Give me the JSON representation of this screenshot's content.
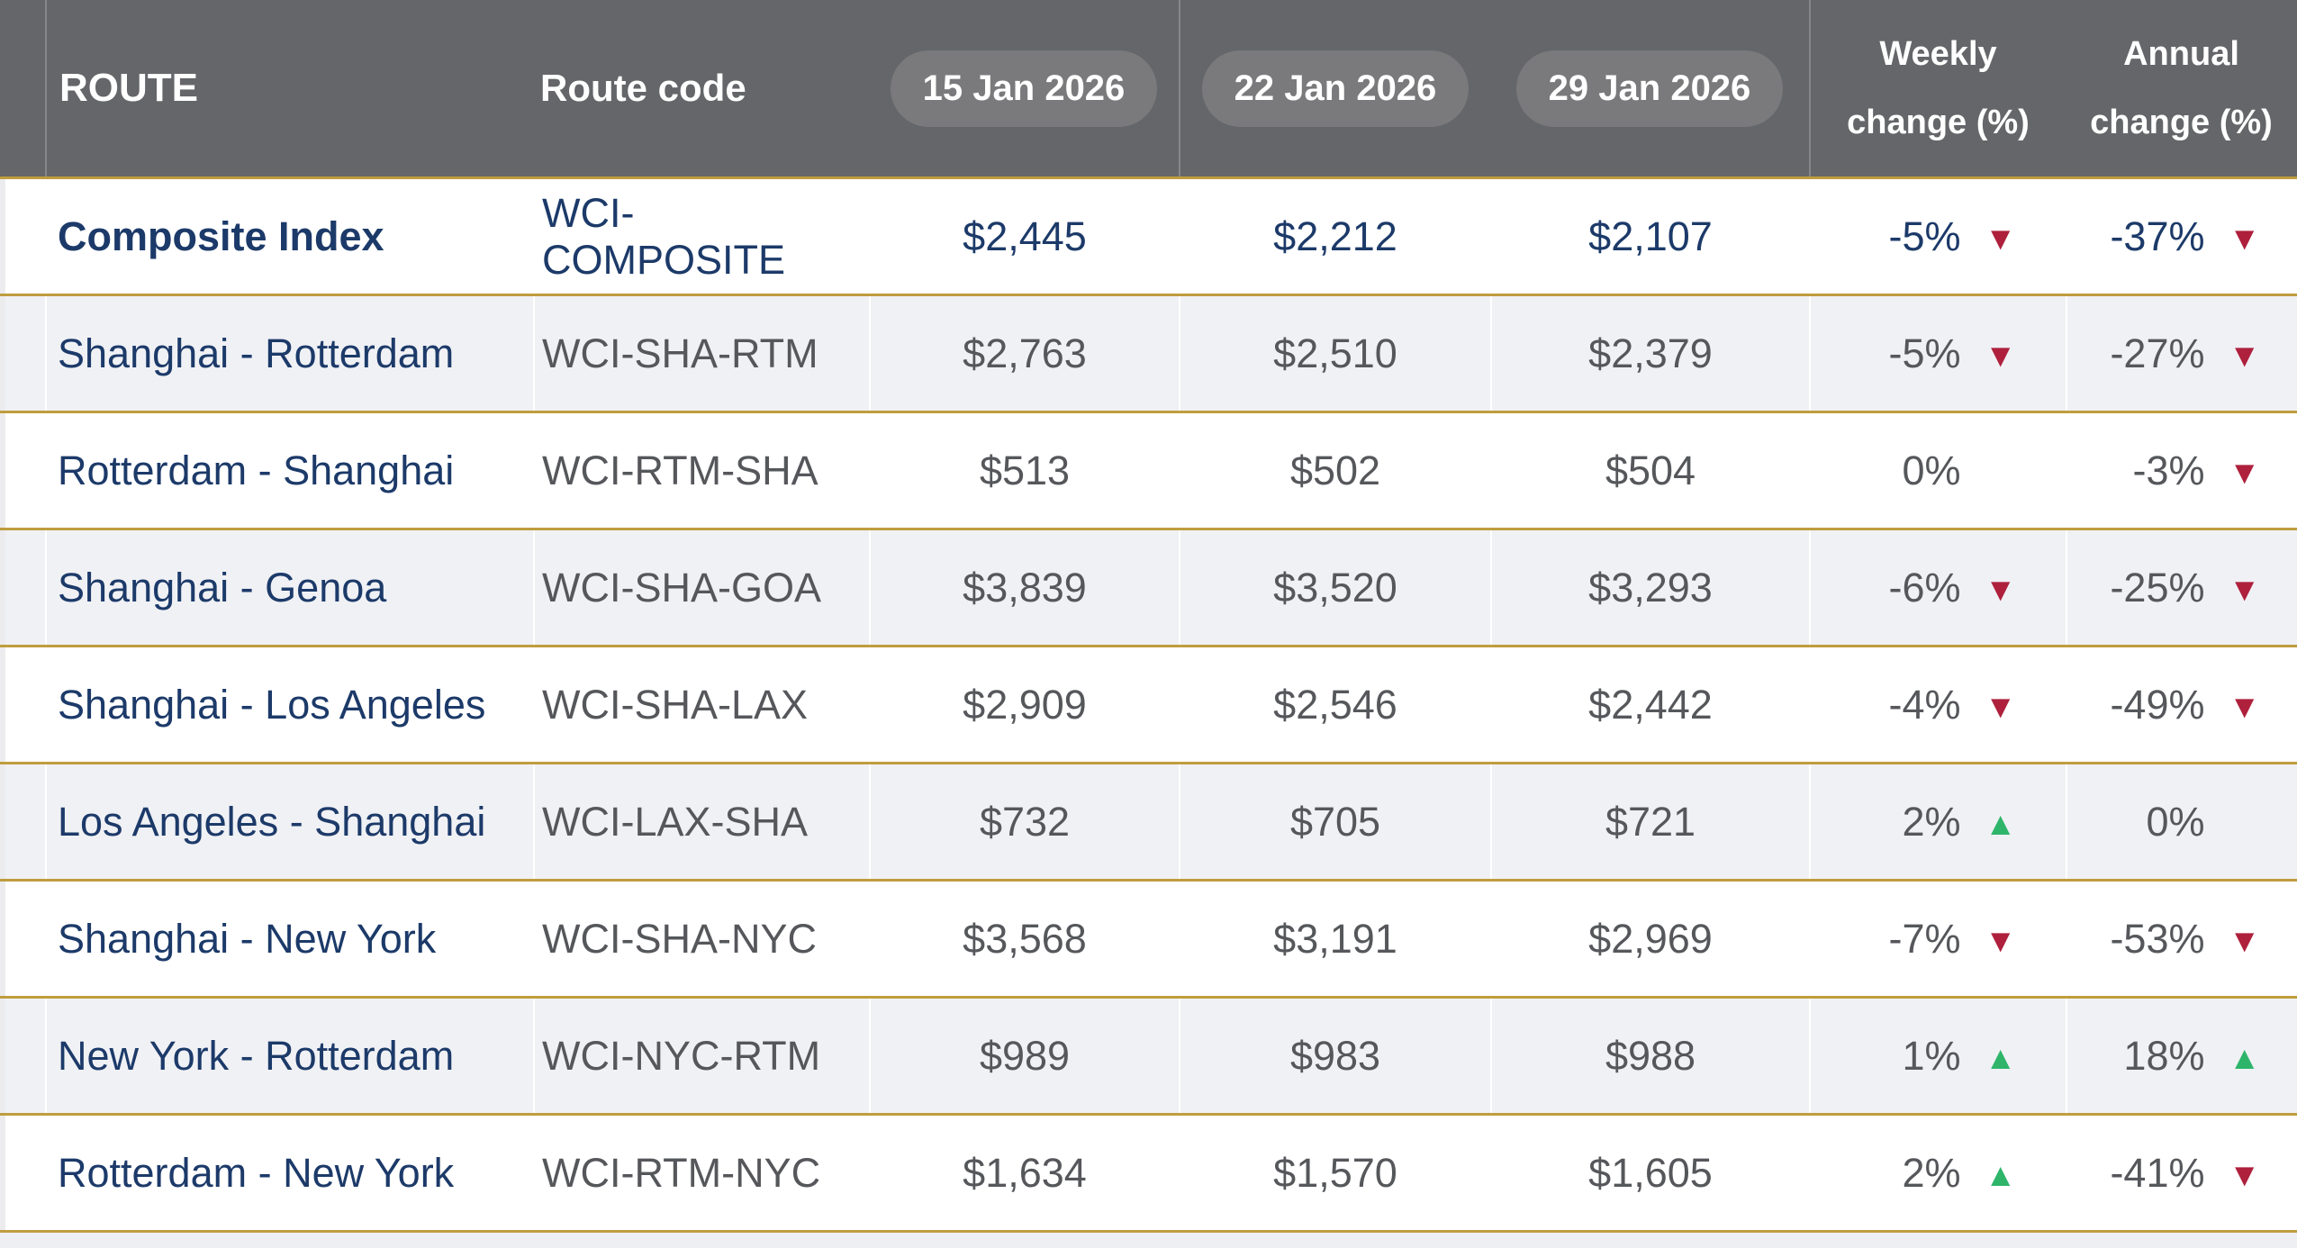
{
  "colors": {
    "header-bg": "#656669",
    "pill-bg": "#7a7a7c",
    "gold": "#bf9d3e",
    "stripe": "#f0f1f5",
    "navy": "#1c3a69",
    "text-gray": "#55575b",
    "down-red": "#ae203c",
    "up-green": "#2eb56a"
  },
  "header": {
    "route": "ROUTE",
    "route_code": "Route code",
    "dates": [
      "15 Jan 2026",
      "22 Jan 2026",
      "29 Jan 2026"
    ],
    "weekly_line1": "Weekly",
    "weekly_line2": "change (%)",
    "annual_line1": "Annual",
    "annual_line2": "change (%)"
  },
  "rows": [
    {
      "route": "Composite Index",
      "code": "WCI-COMPOSITE",
      "prices": [
        "$2,445",
        "$2,212",
        "$2,107"
      ],
      "weekly": {
        "value": "-5%",
        "arrow": "▼",
        "direction": "down"
      },
      "annual": {
        "value": "-37%",
        "arrow": "▼",
        "direction": "down"
      }
    },
    {
      "route": "Shanghai - Rotterdam",
      "code": "WCI-SHA-RTM",
      "prices": [
        "$2,763",
        "$2,510",
        "$2,379"
      ],
      "weekly": {
        "value": "-5%",
        "arrow": "▼",
        "direction": "down"
      },
      "annual": {
        "value": "-27%",
        "arrow": "▼",
        "direction": "down"
      }
    },
    {
      "route": "Rotterdam - Shanghai",
      "code": "WCI-RTM-SHA",
      "prices": [
        "$513",
        "$502",
        "$504"
      ],
      "weekly": {
        "value": "0%",
        "arrow": "",
        "direction": "flat"
      },
      "annual": {
        "value": "-3%",
        "arrow": "▼",
        "direction": "down"
      }
    },
    {
      "route": "Shanghai - Genoa",
      "code": "WCI-SHA-GOA",
      "prices": [
        "$3,839",
        "$3,520",
        "$3,293"
      ],
      "weekly": {
        "value": "-6%",
        "arrow": "▼",
        "direction": "down"
      },
      "annual": {
        "value": "-25%",
        "arrow": "▼",
        "direction": "down"
      }
    },
    {
      "route": "Shanghai - Los Angeles",
      "code": "WCI-SHA-LAX",
      "prices": [
        "$2,909",
        "$2,546",
        "$2,442"
      ],
      "weekly": {
        "value": "-4%",
        "arrow": "▼",
        "direction": "down"
      },
      "annual": {
        "value": "-49%",
        "arrow": "▼",
        "direction": "down"
      }
    },
    {
      "route": "Los Angeles - Shanghai",
      "code": "WCI-LAX-SHA",
      "prices": [
        "$732",
        "$705",
        "$721"
      ],
      "weekly": {
        "value": "2%",
        "arrow": "▲",
        "direction": "up"
      },
      "annual": {
        "value": "0%",
        "arrow": "",
        "direction": "flat"
      }
    },
    {
      "route": "Shanghai - New York",
      "code": "WCI-SHA-NYC",
      "prices": [
        "$3,568",
        "$3,191",
        "$2,969"
      ],
      "weekly": {
        "value": "-7%",
        "arrow": "▼",
        "direction": "down"
      },
      "annual": {
        "value": "-53%",
        "arrow": "▼",
        "direction": "down"
      }
    },
    {
      "route": "New York - Rotterdam",
      "code": "WCI-NYC-RTM",
      "prices": [
        "$989",
        "$983",
        "$988"
      ],
      "weekly": {
        "value": "1%",
        "arrow": "▲",
        "direction": "up"
      },
      "annual": {
        "value": "18%",
        "arrow": "▲",
        "direction": "up"
      }
    },
    {
      "route": "Rotterdam - New York",
      "code": "WCI-RTM-NYC",
      "prices": [
        "$1,634",
        "$1,570",
        "$1,605"
      ],
      "weekly": {
        "value": "2%",
        "arrow": "▲",
        "direction": "up"
      },
      "annual": {
        "value": "-41%",
        "arrow": "▼",
        "direction": "down"
      }
    }
  ],
  "chart_data": {
    "type": "table",
    "columns": [
      "ROUTE",
      "Route code",
      "15 Jan 2026",
      "22 Jan 2026",
      "29 Jan 2026",
      "Weekly change (%)",
      "Annual change (%)"
    ],
    "rows": [
      [
        "Composite Index",
        "WCI-COMPOSITE",
        "$2,445",
        "$2,212",
        "$2,107",
        "-5% ▼",
        "-37% ▼"
      ],
      [
        "Shanghai - Rotterdam",
        "WCI-SHA-RTM",
        "$2,763",
        "$2,510",
        "$2,379",
        "-5% ▼",
        "-27% ▼"
      ],
      [
        "Rotterdam - Shanghai",
        "WCI-RTM-SHA",
        "$513",
        "$502",
        "$504",
        "0%",
        "-3% ▼"
      ],
      [
        "Shanghai - Genoa",
        "WCI-SHA-GOA",
        "$3,839",
        "$3,520",
        "$3,293",
        "-6% ▼",
        "-25% ▼"
      ],
      [
        "Shanghai - Los Angeles",
        "WCI-SHA-LAX",
        "$2,909",
        "$2,546",
        "$2,442",
        "-4% ▼",
        "-49% ▼"
      ],
      [
        "Los Angeles - Shanghai",
        "WCI-LAX-SHA",
        "$732",
        "$705",
        "$721",
        "2% ▲",
        "0%"
      ],
      [
        "Shanghai - New York",
        "WCI-SHA-NYC",
        "$3,568",
        "$3,191",
        "$2,969",
        "-7% ▼",
        "-53% ▼"
      ],
      [
        "New York - Rotterdam",
        "WCI-NYC-RTM",
        "$989",
        "$983",
        "$988",
        "1% ▲",
        "18% ▲"
      ],
      [
        "Rotterdam - New York",
        "WCI-RTM-NYC",
        "$1,634",
        "$1,570",
        "$1,605",
        "2% ▲",
        "-41% ▼"
      ]
    ]
  }
}
